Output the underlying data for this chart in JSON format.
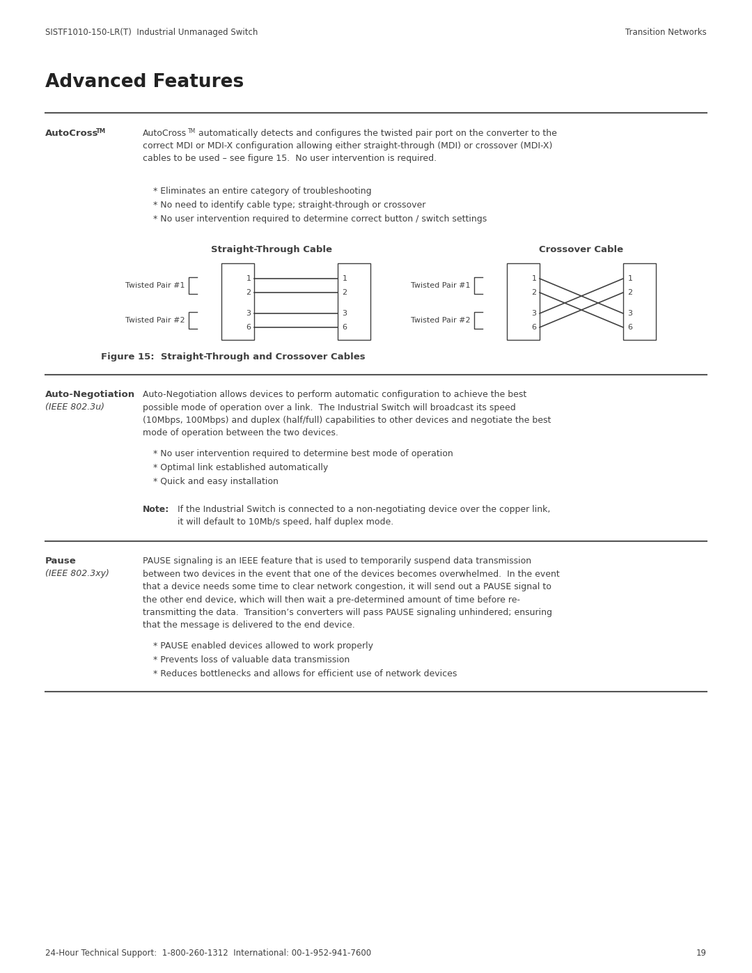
{
  "bg_color": "#ffffff",
  "text_color": "#404040",
  "header_left": "SISTF1010-150-LR(T)  Industrial Unmanaged Switch",
  "header_right": "Transition Networks",
  "page_title": "Advanced Features",
  "footer_text": "24-Hour Technical Support:  1-800-260-1312  International: 00-1-952-941-7600",
  "footer_page": "19",
  "section1_label": "AutoCross",
  "section1_body_line1": "AutoCross",
  "section1_body_rest": " automatically detects and configures the twisted pair port on the converter to the\ncorrect MDI or MDI-X configuration allowing either straight-through (MDI) or crossover (MDI-X)\ncables to be used – see figure 15.  No user intervention is required.",
  "section1_bullets": [
    "* Eliminates an entire category of troubleshooting",
    "* No need to identify cable type; straight-through or crossover",
    "* No user intervention required to determine correct button / switch settings"
  ],
  "fig_title_st": "Straight-Through Cable",
  "fig_title_co": "Crossover Cable",
  "fig_label": "Figure 15:  Straight-Through and Crossover Cables",
  "section2_label": "Auto-Negotiation",
  "section2_label2": "(IEEE 802.3u)",
  "section2_body": "Auto-Negotiation allows devices to perform automatic configuration to achieve the best\npossible mode of operation over a link.  The Industrial Switch will broadcast its speed\n(10Mbps, 100Mbps) and duplex (half/full) capabilities to other devices and negotiate the best\nmode of operation between the two devices.",
  "section2_bullets": [
    "* No user intervention required to determine best mode of operation",
    "* Optimal link established automatically",
    "* Quick and easy installation"
  ],
  "section2_note_label": "Note",
  "section2_note_line1": "If the Industrial Switch is connected to a non-negotiating device over the copper link,",
  "section2_note_line2": "it will default to 10Mb/s speed, half duplex mode.",
  "section3_label": "Pause",
  "section3_label2": "(IEEE 802.3xy)",
  "section3_body": "PAUSE signaling is an IEEE feature that is used to temporarily suspend data transmission\nbetween two devices in the event that one of the devices becomes overwhelmed.  In the event\nthat a device needs some time to clear network congestion, it will send out a PAUSE signal to\nthe other end device, which will then wait a pre-determined amount of time before re-\ntransmitting the data.  Transition’s converters will pass PAUSE signaling unhindered; ensuring\nthat the message is delivered to the end device.",
  "section3_bullets": [
    "* PAUSE enabled devices allowed to work properly",
    "* Prevents loss of valuable data transmission",
    "* Reduces bottlenecks and allows for efficient use of network devices"
  ]
}
